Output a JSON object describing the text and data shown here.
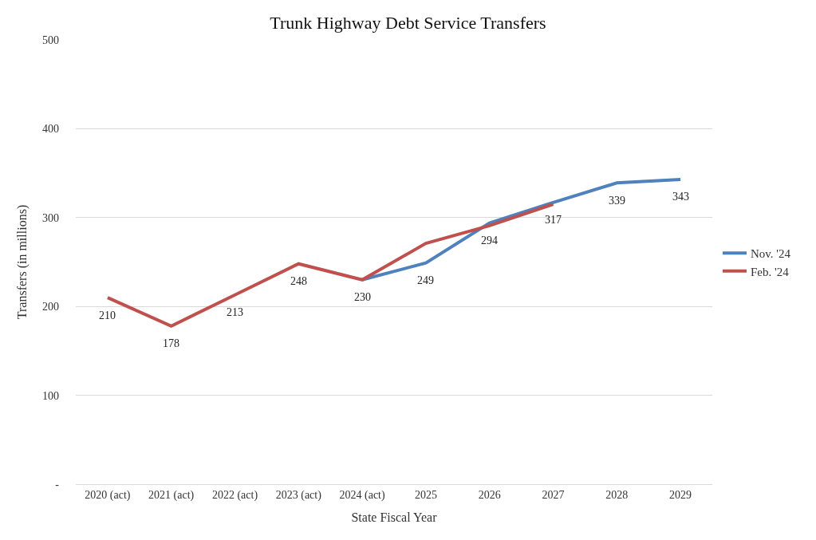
{
  "chart_data": {
    "type": "line",
    "title": "Trunk Highway Debt Service Transfers",
    "xlabel": "State Fiscal Year",
    "ylabel": "Transfers (in millions)",
    "categories": [
      "2020 (act)",
      "2021 (act)",
      "2022 (act)",
      "2023 (act)",
      "2024 (act)",
      "2025",
      "2026",
      "2027",
      "2028",
      "2029"
    ],
    "series": [
      {
        "name": "Nov. '24",
        "color": "#4f81bd",
        "values": [
          null,
          null,
          null,
          null,
          230,
          249,
          294,
          317,
          339,
          343
        ],
        "value_labels": [
          null,
          null,
          null,
          null,
          "230",
          "249",
          "294",
          "317",
          "339",
          "343"
        ]
      },
      {
        "name": "Feb. '24",
        "color": "#c0504d",
        "values": [
          210,
          178,
          213,
          248,
          230,
          271,
          291,
          315,
          null,
          null
        ],
        "value_labels": [
          "210",
          "178",
          "213",
          "248",
          null,
          null,
          null,
          null,
          null,
          null
        ]
      }
    ],
    "ylim": [
      0,
      500
    ],
    "yticks": [
      {
        "value": 0,
        "label": "-"
      },
      100,
      200,
      300,
      400,
      500
    ],
    "grid": "y",
    "legend": "right",
    "marker": "none",
    "line_style": "solid"
  }
}
